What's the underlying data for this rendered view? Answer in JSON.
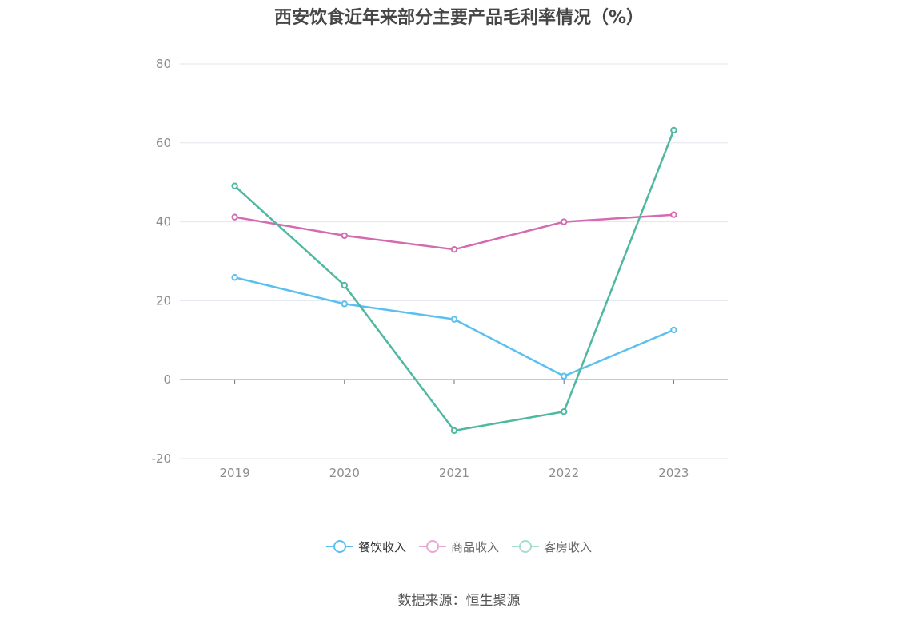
{
  "chart_data": {
    "type": "line",
    "title": "西安饮食近年来部分主要产品毛利率情况（%）",
    "categories": [
      "2019",
      "2020",
      "2021",
      "2022",
      "2023"
    ],
    "ylim": [
      -20,
      80
    ],
    "yticks": [
      80,
      60,
      40,
      20,
      0,
      -20
    ],
    "grid": true,
    "legend_position": "bottom-center",
    "series": [
      {
        "name": "餐饮收入",
        "color": "#5bc0f0",
        "values": [
          25.9,
          19.2,
          15.3,
          0.9,
          12.6
        ]
      },
      {
        "name": "商品收入",
        "color": "#d46bb0",
        "values": [
          41.2,
          36.5,
          33.0,
          40.0,
          41.8
        ]
      },
      {
        "name": "客房收入",
        "color": "#4fb8a0",
        "values": [
          49.1,
          23.9,
          -12.9,
          -8.1,
          63.2
        ]
      }
    ],
    "legend_colors": [
      "#5bc0f0",
      "#e7a9d3",
      "#a7dccf"
    ]
  },
  "source_text": "数据来源：恒生聚源"
}
